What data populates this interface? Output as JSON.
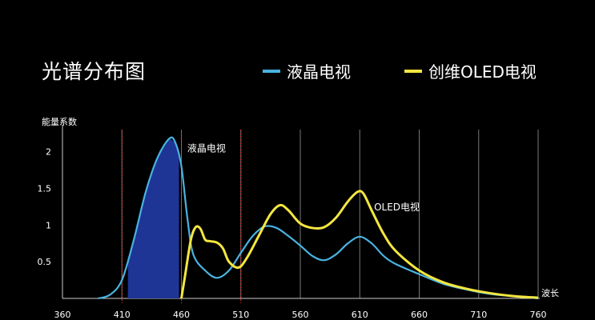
{
  "chart_data": {
    "type": "line",
    "title": "光谱分布图",
    "ylabel": "能量系数",
    "xlabel": "波长",
    "x_ticks": [
      360,
      410,
      460,
      510,
      560,
      610,
      660,
      710,
      760
    ],
    "y_ticks": [
      0.5,
      1,
      1.5,
      2
    ],
    "xlim": [
      360,
      760
    ],
    "ylim": [
      0,
      2.3
    ],
    "grid": "vertical",
    "legend_placement": "top",
    "red_markers": [
      410,
      460,
      510
    ],
    "shaded_band": [
      415,
      458
    ],
    "series": [
      {
        "name": "液晶电视",
        "color": "#4ab3e0",
        "annotation": "液晶电视",
        "annotation_x": 465,
        "annotation_y": 2.0,
        "points": [
          [
            390,
            0.0
          ],
          [
            400,
            0.05
          ],
          [
            410,
            0.25
          ],
          [
            420,
            0.8
          ],
          [
            430,
            1.45
          ],
          [
            440,
            1.92
          ],
          [
            450,
            2.18
          ],
          [
            455,
            2.12
          ],
          [
            460,
            1.8
          ],
          [
            465,
            1.1
          ],
          [
            470,
            0.6
          ],
          [
            480,
            0.38
          ],
          [
            490,
            0.28
          ],
          [
            500,
            0.38
          ],
          [
            510,
            0.62
          ],
          [
            520,
            0.85
          ],
          [
            530,
            0.98
          ],
          [
            540,
            0.96
          ],
          [
            550,
            0.85
          ],
          [
            560,
            0.72
          ],
          [
            570,
            0.58
          ],
          [
            580,
            0.52
          ],
          [
            590,
            0.6
          ],
          [
            600,
            0.75
          ],
          [
            610,
            0.84
          ],
          [
            620,
            0.75
          ],
          [
            630,
            0.58
          ],
          [
            640,
            0.47
          ],
          [
            660,
            0.33
          ],
          [
            680,
            0.2
          ],
          [
            700,
            0.12
          ],
          [
            720,
            0.06
          ],
          [
            740,
            0.03
          ],
          [
            760,
            0.0
          ]
        ]
      },
      {
        "name": "创维OLED电视",
        "color": "#f4e640",
        "annotation": "OLED电视",
        "annotation_x": 622,
        "annotation_y": 1.2,
        "points": [
          [
            460,
            0.0
          ],
          [
            463,
            0.3
          ],
          [
            468,
            0.8
          ],
          [
            472,
            0.97
          ],
          [
            476,
            0.95
          ],
          [
            480,
            0.8
          ],
          [
            484,
            0.78
          ],
          [
            490,
            0.76
          ],
          [
            495,
            0.68
          ],
          [
            500,
            0.5
          ],
          [
            508,
            0.42
          ],
          [
            515,
            0.55
          ],
          [
            525,
            0.85
          ],
          [
            535,
            1.15
          ],
          [
            543,
            1.27
          ],
          [
            550,
            1.2
          ],
          [
            560,
            1.02
          ],
          [
            570,
            0.96
          ],
          [
            580,
            0.97
          ],
          [
            590,
            1.1
          ],
          [
            600,
            1.32
          ],
          [
            608,
            1.45
          ],
          [
            613,
            1.43
          ],
          [
            620,
            1.2
          ],
          [
            630,
            0.88
          ],
          [
            640,
            0.65
          ],
          [
            660,
            0.38
          ],
          [
            680,
            0.22
          ],
          [
            700,
            0.13
          ],
          [
            720,
            0.07
          ],
          [
            740,
            0.03
          ],
          [
            760,
            0.01
          ]
        ]
      }
    ]
  }
}
